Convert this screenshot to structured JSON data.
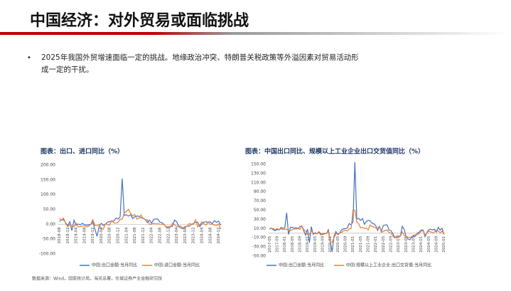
{
  "slide": {
    "title": "中国经济：对外贸易或面临挑战",
    "bullet": [
      "2025年我国外贸增速面临一定的挑战。地缘政治冲突、特朗普关税政策等外溢因素对贸易活动形",
      "成一定的干扰。"
    ],
    "source": "数据来源：Wind，国家统计局，海关总署，长城证券产业金融研究院"
  },
  "chart_data": [
    {
      "type": "line",
      "title": "图表：出口、进口同比（%）",
      "categories": [
        "2018-08",
        null,
        null,
        null,
        "2018-12",
        null,
        null,
        null,
        "2019-04",
        null,
        null,
        null,
        "2019-08",
        null,
        null,
        null,
        "2019-12",
        null,
        null,
        null,
        "2020-04",
        null,
        null,
        null,
        "2020-08",
        null,
        null,
        null,
        "2020-12",
        null,
        null,
        null,
        "2021-04",
        null,
        null,
        null,
        "2021-08",
        null,
        null,
        null,
        "2021-12",
        null,
        null,
        null,
        "2022-04",
        null,
        null,
        null,
        "2022-08",
        null,
        null,
        null,
        "2022-12",
        null,
        null,
        null,
        "2023-04",
        null,
        null,
        null,
        "2023-08",
        null,
        null,
        null,
        "2023-12",
        null,
        null,
        null,
        "2024-04",
        null,
        null,
        null,
        "2024-08",
        null,
        null,
        null,
        "2024-12",
        null
      ],
      "ylim": [
        -100,
        200
      ],
      "yticks": [
        {
          "value": -100,
          "label": "-100.00"
        },
        {
          "value": -50,
          "label": "-50.00"
        },
        {
          "value": 0,
          "label": "0.00"
        },
        {
          "value": 50,
          "label": "50.00"
        },
        {
          "value": 100,
          "label": "100.00"
        },
        {
          "value": 150,
          "label": "150.00"
        },
        {
          "value": 200,
          "label": "200.00"
        }
      ],
      "series": [
        {
          "name": "中国:出口金额:当月同比",
          "color": "#4472c4",
          "values": [
            9.8,
            14.5,
            15.6,
            5.4,
            -4.4,
            9.1,
            -20.7,
            14.2,
            -2.7,
            1.1,
            -1.3,
            3.3,
            -1.0,
            -3.2,
            -0.9,
            -1.1,
            7.6,
            -17.2,
            -40.6,
            -6.6,
            3.5,
            -3.3,
            0.5,
            7.2,
            9.5,
            9.9,
            11.4,
            21.1,
            18.1,
            24.9,
            154.9,
            30.6,
            32.3,
            27.9,
            32.2,
            19.3,
            25.6,
            28.1,
            27.1,
            22.0,
            20.9,
            16.3,
            6.2,
            14.7,
            3.9,
            16.9,
            17.9,
            18.0,
            7.1,
            5.7,
            -0.3,
            -8.9,
            -9.9,
            -6.8,
            -6.8,
            14.8,
            8.5,
            -7.5,
            -12.4,
            -14.5,
            -8.8,
            -6.2,
            -6.4,
            0.5,
            2.3,
            7.1,
            7.1,
            -7.5,
            1.5,
            7.6,
            8.6,
            7.0,
            8.7,
            2.4,
            12.7,
            6.7,
            10.7,
            -3.0
          ]
        },
        {
          "name": "中国:进口金额:当月同比",
          "color": "#ed7d31",
          "values": [
            20.0,
            14.3,
            21.4,
            3.0,
            -7.6,
            -1.5,
            -5.2,
            -7.6,
            4.0,
            -8.5,
            -7.3,
            -5.6,
            -5.6,
            -8.5,
            -6.4,
            0.3,
            16.3,
            -4.0,
            -4.0,
            -0.9,
            -14.2,
            -16.7,
            2.7,
            -1.4,
            -2.1,
            13.2,
            4.7,
            4.5,
            6.5,
            17.3,
            17.3,
            38.1,
            43.1,
            51.1,
            36.7,
            28.1,
            33.1,
            17.6,
            20.6,
            31.7,
            19.5,
            15.5,
            15.5,
            -0.1,
            0.0,
            4.1,
            1.0,
            2.3,
            0.3,
            0.3,
            -0.7,
            -10.6,
            -7.5,
            -10.2,
            4.2,
            -1.4,
            -7.9,
            -4.5,
            -6.8,
            -12.4,
            -7.3,
            -6.2,
            3.0,
            -0.6,
            0.2,
            15.5,
            -8.2,
            -1.9,
            8.4,
            1.8,
            -2.3,
            7.2,
            0.5,
            0.3,
            -2.3,
            -3.9,
            1.0,
            -16.0
          ]
        }
      ]
    },
    {
      "type": "line",
      "title": "图表：中国出口同比、规模以上工业企业出口交货值同比（%）",
      "categories": [
        "2017-05",
        null,
        null,
        null,
        "2017-09",
        null,
        null,
        null,
        "2018-01",
        null,
        null,
        null,
        "2018-05",
        null,
        null,
        null,
        "2018-09",
        null,
        null,
        null,
        "2019-01",
        null,
        null,
        null,
        "2019-05",
        null,
        null,
        null,
        "2019-09",
        null,
        null,
        null,
        "2020-01",
        null,
        null,
        null,
        "2020-05",
        null,
        null,
        null,
        "2020-09",
        null,
        null,
        null,
        "2021-01",
        null,
        null,
        null,
        "2021-05",
        null,
        null,
        null,
        "2021-09",
        null,
        null,
        null,
        "2022-01",
        null,
        null,
        null,
        "2022-05",
        null,
        null,
        null,
        "2022-09",
        null,
        null,
        null,
        "2023-01",
        null,
        null,
        null,
        "2023-05",
        null,
        null,
        null,
        "2023-09",
        null,
        null,
        null,
        "2024-01",
        null,
        null,
        null,
        "2024-05",
        null,
        null,
        null,
        "2024-09",
        null,
        null,
        null,
        "2025-01"
      ],
      "ylim": [
        -50,
        150
      ],
      "yticks": [
        {
          "value": -50,
          "label": "-50.00"
        },
        {
          "value": -30,
          "label": "-30.00"
        },
        {
          "value": -10,
          "label": "-10.00"
        },
        {
          "value": 10,
          "label": "10.00"
        },
        {
          "value": 30,
          "label": "30.00"
        },
        {
          "value": 50,
          "label": "50.00"
        },
        {
          "value": 70,
          "label": "70.00"
        },
        {
          "value": 90,
          "label": "90.00"
        },
        {
          "value": 110,
          "label": "110.00"
        },
        {
          "value": 130,
          "label": "130.00"
        },
        {
          "value": 150,
          "label": "150.00"
        }
      ],
      "series": [
        {
          "name": "中国:出口金额:当月同比",
          "color": "#4472c4",
          "values": [
            8.7,
            11.3,
            7.2,
            5.5,
            8.1,
            6.9,
            12.3,
            10.9,
            11.1,
            44.5,
            -2.7,
            12.9,
            12.6,
            11.2,
            12.2,
            9.8,
            14.5,
            15.6,
            5.4,
            -4.4,
            9.1,
            -20.7,
            14.2,
            -2.7,
            1.1,
            -1.3,
            3.3,
            -1.0,
            -3.2,
            -0.9,
            -1.1,
            7.6,
            -17.2,
            -40.6,
            -6.6,
            3.5,
            -3.3,
            0.5,
            7.2,
            9.5,
            9.9,
            11.4,
            21.1,
            18.1,
            24.9,
            154.9,
            30.6,
            32.3,
            27.9,
            32.2,
            19.3,
            25.6,
            28.1,
            27.1,
            22.0,
            20.9,
            16.3,
            6.2,
            14.7,
            3.9,
            16.9,
            17.9,
            18.0,
            7.1,
            5.7,
            -0.3,
            -8.9,
            -9.9,
            -6.8,
            -6.8,
            14.8,
            8.5,
            -7.5,
            -12.4,
            -14.5,
            -8.8,
            -6.2,
            -6.4,
            0.5,
            2.3,
            7.1,
            7.1,
            -7.5,
            1.5,
            7.6,
            8.6,
            7.0,
            8.7,
            2.4,
            12.7,
            6.7,
            10.7,
            -3.0
          ]
        },
        {
          "name": "中国:规模以上工业企业:出口交货值:当月同比",
          "color": "#ed7d31",
          "values": [
            10.6,
            10.3,
            10.1,
            7.1,
            10.2,
            7.1,
            10.0,
            8.0,
            8.4,
            8.4,
            6.0,
            5.1,
            8.1,
            9.1,
            9.1,
            10.2,
            8.2,
            15.6,
            8.0,
            4.5,
            -2.3,
            -2.3,
            5.1,
            0.2,
            -0.6,
            -1.5,
            1.7,
            -4.3,
            -0.7,
            -0.2,
            -0.9,
            4.3,
            -19.7,
            -19.7,
            -10.3,
            -1.0,
            -1.1,
            0.4,
            1.8,
            5.0,
            6.6,
            4.7,
            9.5,
            9.8,
            50.0,
            50.0,
            24.7,
            20.4,
            11.6,
            12.6,
            10.4,
            11.4,
            7.1,
            17.8,
            14.8,
            12.9,
            11.8,
            11.8,
            14.4,
            1.9,
            4.0,
            6.2,
            7.2,
            1.5,
            0.7,
            -6.0,
            -10.5,
            -5.7,
            -6.2,
            -6.2,
            2.7,
            -4.9,
            -6.5,
            -8.7,
            -9.3,
            -7.5,
            -4.0,
            -3.3,
            -3.1,
            -0.5,
            5.0,
            5.0,
            -3.7,
            0.9,
            4.1,
            3.0,
            1.0,
            2.9,
            6.2,
            5.1,
            0.8,
            4.7,
            -2.0
          ]
        }
      ]
    }
  ]
}
